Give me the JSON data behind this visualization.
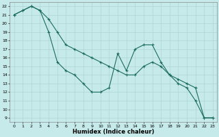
{
  "xlabel": "Humidex (Indice chaleur)",
  "ylabel": "",
  "background_color": "#c6eaea",
  "grid_color": "#aed4d4",
  "line_color": "#1a6b5a",
  "xlim": [
    -0.5,
    23.5
  ],
  "ylim": [
    8.5,
    22.5
  ],
  "yticks": [
    9,
    10,
    11,
    12,
    13,
    14,
    15,
    16,
    17,
    18,
    19,
    20,
    21,
    22
  ],
  "xticks": [
    0,
    1,
    2,
    3,
    4,
    5,
    6,
    7,
    8,
    9,
    10,
    11,
    12,
    13,
    14,
    15,
    16,
    17,
    18,
    19,
    20,
    21,
    22,
    23
  ],
  "series1_x": [
    0,
    1,
    2,
    3,
    4,
    5,
    6,
    7,
    8,
    9,
    10,
    11,
    12,
    13,
    14,
    15,
    16,
    17,
    18,
    19,
    20,
    21,
    22,
    23
  ],
  "series1_y": [
    21.0,
    21.5,
    22.0,
    21.5,
    19.0,
    15.5,
    14.5,
    14.0,
    13.0,
    12.0,
    12.0,
    12.5,
    16.5,
    14.5,
    17.0,
    17.5,
    17.5,
    15.5,
    14.0,
    13.0,
    12.5,
    11.0,
    9.0,
    9.0
  ],
  "series2_x": [
    0,
    1,
    2,
    3,
    4,
    5,
    6,
    7,
    8,
    9,
    10,
    11,
    12,
    13,
    14,
    15,
    16,
    17,
    18,
    19,
    20,
    21,
    22,
    23
  ],
  "series2_y": [
    21.0,
    21.5,
    22.0,
    21.5,
    20.5,
    19.0,
    17.5,
    17.0,
    16.5,
    16.0,
    15.5,
    15.0,
    14.5,
    14.0,
    14.0,
    15.0,
    15.5,
    15.0,
    14.0,
    13.5,
    13.0,
    12.5,
    9.0,
    9.0
  ]
}
